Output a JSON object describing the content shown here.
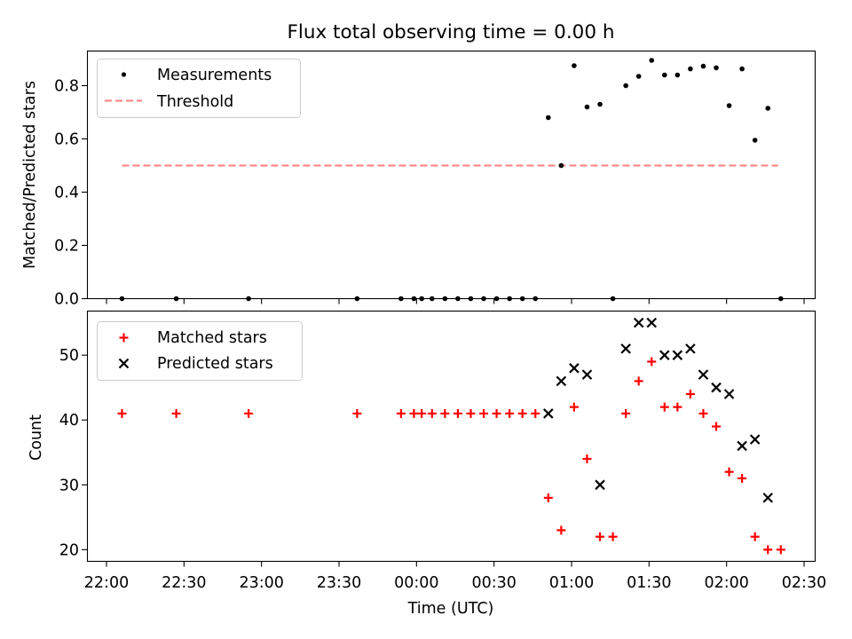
{
  "chart_data": [
    {
      "type": "scatter",
      "title": "Flux total observing time = 0.00 h",
      "xlabel": "",
      "ylabel": "Matched/Predicted stars",
      "ylim": [
        0,
        0.93
      ],
      "yticks": [
        "0.0",
        "0.2",
        "0.4",
        "0.6",
        "0.8"
      ],
      "x_axis": "time of day (UTC), continuous across midnight",
      "grid": false,
      "legend": {
        "position": "top-left",
        "entries": [
          "Measurements",
          "Threshold"
        ]
      },
      "series": [
        {
          "name": "Measurements",
          "marker": "dot",
          "color": "#000000",
          "x": [
            "22:06",
            "22:27",
            "22:55",
            "23:37",
            "23:54",
            "23:59",
            "00:02",
            "00:06",
            "00:11",
            "00:16",
            "00:21",
            "00:26",
            "00:31",
            "00:36",
            "00:41",
            "00:46",
            "00:51",
            "00:56",
            "01:01",
            "01:06",
            "01:11",
            "01:16",
            "01:21",
            "01:26",
            "01:31",
            "01:36",
            "01:41",
            "01:46",
            "01:51",
            "01:56",
            "02:01",
            "02:06",
            "02:11",
            "02:16",
            "02:21"
          ],
          "y": [
            0,
            0,
            0,
            0,
            0,
            0,
            0,
            0,
            0,
            0,
            0,
            0,
            0,
            0,
            0,
            0,
            0.68,
            0.5,
            0.875,
            0.72,
            0.73,
            0,
            0.8,
            0.835,
            0.895,
            0.84,
            0.84,
            0.863,
            0.873,
            0.867,
            0.725,
            0.863,
            0.595,
            0.715,
            0
          ]
        },
        {
          "name": "Threshold",
          "marker": "dashed-line",
          "color": "#ff7f7f",
          "x": [
            "22:06",
            "02:20"
          ],
          "y": [
            0.5,
            0.5
          ]
        }
      ]
    },
    {
      "type": "scatter",
      "title": "",
      "xlabel": "Time (UTC)",
      "ylabel": "Count",
      "ylim": [
        18.2,
        56.8
      ],
      "yticks": [
        "20",
        "30",
        "40",
        "50"
      ],
      "xticks": [
        "22:00",
        "22:30",
        "23:00",
        "23:30",
        "00:00",
        "00:30",
        "01:00",
        "01:30",
        "02:00",
        "02:30"
      ],
      "grid": false,
      "legend": {
        "position": "top-left",
        "entries": [
          "Matched stars",
          "Predicted stars"
        ]
      },
      "series": [
        {
          "name": "Matched stars",
          "marker": "plus",
          "color": "#ff0000",
          "x": [
            "22:06",
            "22:27",
            "22:55",
            "23:37",
            "23:54",
            "23:59",
            "00:02",
            "00:06",
            "00:11",
            "00:16",
            "00:21",
            "00:26",
            "00:31",
            "00:36",
            "00:41",
            "00:46",
            "00:51",
            "00:56",
            "01:01",
            "01:06",
            "01:11",
            "01:16",
            "01:21",
            "01:26",
            "01:31",
            "01:36",
            "01:41",
            "01:46",
            "01:51",
            "01:56",
            "02:01",
            "02:06",
            "02:11",
            "02:16",
            "02:21"
          ],
          "y": [
            41,
            41,
            41,
            41,
            41,
            41,
            41,
            41,
            41,
            41,
            41,
            41,
            41,
            41,
            41,
            41,
            28,
            23,
            42,
            34,
            22,
            22,
            41,
            46,
            49,
            42,
            42,
            44,
            41,
            39,
            32,
            31,
            22,
            20,
            20
          ]
        },
        {
          "name": "Predicted stars",
          "marker": "x",
          "color": "#000000",
          "x": [
            "00:51",
            "00:56",
            "01:01",
            "01:06",
            "01:11",
            "01:21",
            "01:26",
            "01:31",
            "01:36",
            "01:41",
            "01:46",
            "01:51",
            "01:56",
            "02:01",
            "02:06",
            "02:11",
            "02:16"
          ],
          "y": [
            41,
            46,
            48,
            47,
            30,
            51,
            55,
            55,
            50,
            50,
            51,
            47,
            45,
            44,
            36,
            37,
            28
          ]
        }
      ]
    }
  ]
}
